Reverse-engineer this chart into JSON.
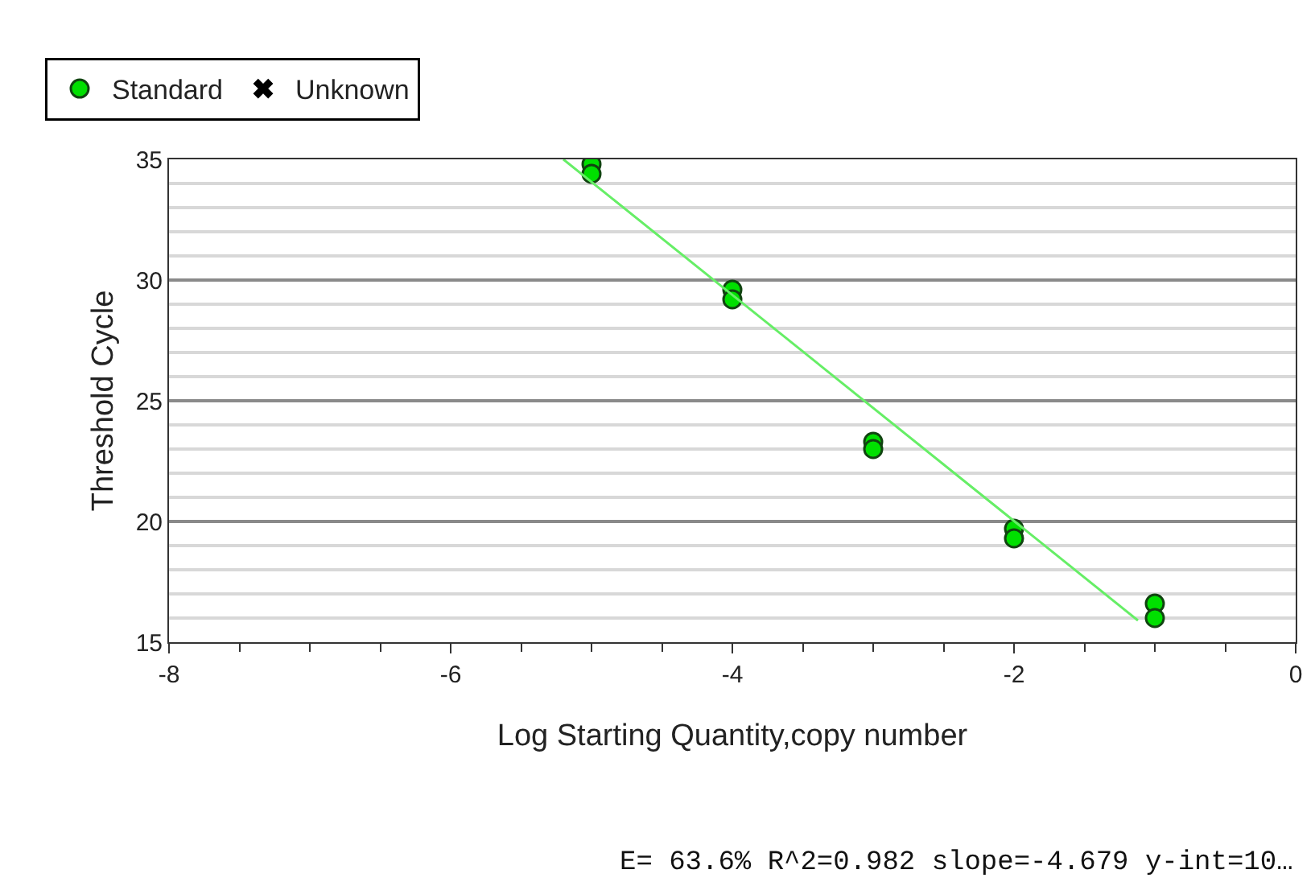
{
  "chart_data": {
    "type": "scatter",
    "xlabel": "Log Starting Quantity,copy number",
    "ylabel": "Threshold Cycle",
    "series": [
      {
        "name": "Standard",
        "color": "#00e000",
        "marker": "circle",
        "x": [
          -5,
          -5,
          -4,
          -4,
          -3,
          -3,
          -2,
          -2,
          -1,
          -1
        ],
        "values": [
          34.8,
          34.4,
          29.6,
          29.2,
          23.3,
          23.0,
          19.7,
          19.3,
          16.6,
          16.0
        ]
      },
      {
        "name": "Unknown",
        "color": "#000000",
        "marker": "cross"
      },
      {
        "type": "line",
        "color": "#66ee66",
        "marker": "none",
        "x": [
          -5.2,
          -1.12
        ],
        "values": [
          35.0,
          15.9
        ]
      }
    ],
    "xlim": [
      -8,
      0
    ],
    "ylim": [
      15,
      35
    ],
    "xticks": [
      -8,
      {
        "value": -7.5,
        "label": null
      },
      {
        "value": -7,
        "label": null
      },
      {
        "value": -6.5,
        "label": null
      },
      -6,
      {
        "value": -5.5,
        "label": null
      },
      {
        "value": -5,
        "label": null
      },
      {
        "value": -4.5,
        "label": null
      },
      -4,
      {
        "value": -3.5,
        "label": null
      },
      {
        "value": -3,
        "label": null
      },
      {
        "value": -2.5,
        "label": null
      },
      -2,
      {
        "value": -1.5,
        "label": null
      },
      {
        "value": -1,
        "label": null
      },
      {
        "value": -0.5,
        "label": null
      },
      0
    ],
    "yticks": [
      15,
      {
        "value": 16,
        "label": null
      },
      {
        "value": 17,
        "label": null
      },
      {
        "value": 18,
        "label": null
      },
      {
        "value": 19,
        "label": null
      },
      20,
      {
        "value": 21,
        "label": null
      },
      {
        "value": 22,
        "label": null
      },
      {
        "value": 23,
        "label": null
      },
      {
        "value": 24,
        "label": null
      },
      25,
      {
        "value": 26,
        "label": null
      },
      {
        "value": 27,
        "label": null
      },
      {
        "value": 28,
        "label": null
      },
      {
        "value": 29,
        "label": null
      },
      30,
      {
        "value": 31,
        "label": null
      },
      {
        "value": 32,
        "label": null
      },
      {
        "value": 33,
        "label": null
      },
      {
        "value": 34,
        "label": null
      },
      35
    ],
    "grid": "y",
    "legend": "top left",
    "annotations": [
      "E= 63.6% R^2=0.982 slope=-4.679 y-int=10…"
    ]
  }
}
